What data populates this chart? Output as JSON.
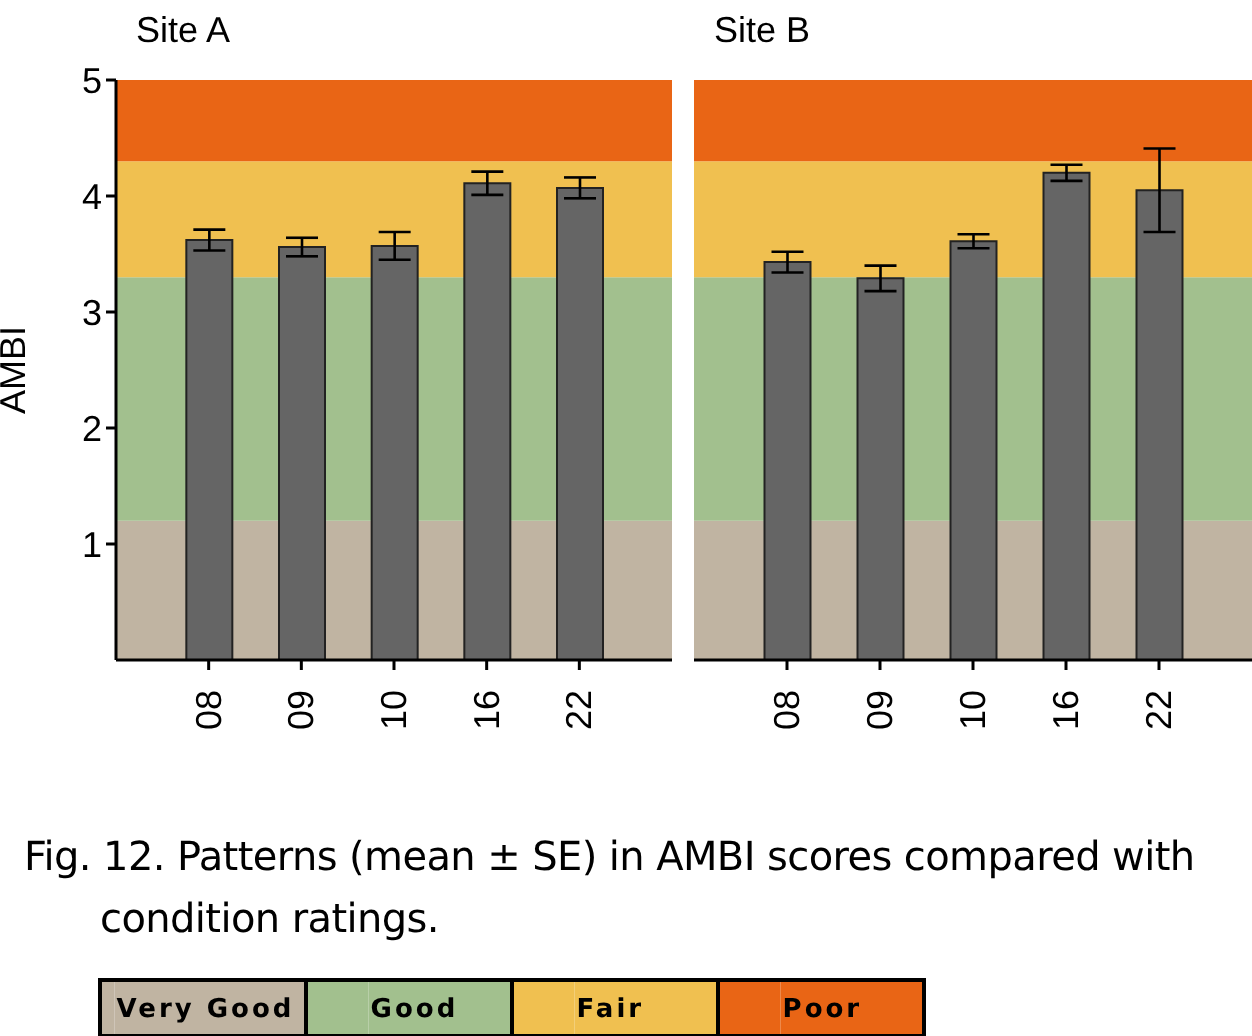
{
  "chart_data": [
    {
      "type": "bar",
      "title": "Site A",
      "ylabel": "AMBI",
      "categories": [
        "08",
        "09",
        "10",
        "16",
        "22"
      ],
      "series": [
        {
          "color": "#656565",
          "values": [
            3.62,
            3.56,
            3.57,
            4.11,
            4.07
          ],
          "errors": [
            0.09,
            0.08,
            0.12,
            0.1,
            0.09
          ]
        }
      ],
      "ylim": [
        0,
        5
      ],
      "yticks": [
        1,
        2,
        3,
        4,
        5
      ],
      "grid": false,
      "legend": "bottom",
      "bands": [
        {
          "axis": "y",
          "from": 0,
          "to": 1.2,
          "label": "Very Good",
          "color": "#c0b4a2"
        },
        {
          "axis": "y",
          "from": 1.2,
          "to": 3.3,
          "label": "Good",
          "color": "#a2c08e"
        },
        {
          "axis": "y",
          "from": 3.3,
          "to": 4.3,
          "label": "Fair",
          "color": "#f0c050"
        },
        {
          "axis": "y",
          "from": 4.3,
          "to": 5,
          "label": "Poor",
          "color": "#e96515"
        }
      ],
      "annotations": [
        "Fig. 12. Patterns (mean ± SE) in AMBI scores compared with condition ratings."
      ]
    },
    {
      "type": "bar",
      "title": "Site B",
      "categories": [
        "08",
        "09",
        "10",
        "16",
        "22"
      ],
      "series": [
        {
          "color": "#656565",
          "values": [
            3.43,
            3.29,
            3.61,
            4.2,
            4.05
          ],
          "errors": [
            0.09,
            0.11,
            0.06,
            0.07,
            0.36
          ]
        }
      ],
      "ylim": [
        0,
        5
      ],
      "yticks": [
        1,
        2,
        3,
        4,
        5
      ],
      "grid": false,
      "tick_labels": "x",
      "bands": [
        {
          "axis": "y",
          "from": 0,
          "to": 1.2,
          "color": "#c0b4a2"
        },
        {
          "axis": "y",
          "from": 1.2,
          "to": 3.3,
          "color": "#a2c08e"
        },
        {
          "axis": "y",
          "from": 3.3,
          "to": 4.3,
          "color": "#f0c050"
        },
        {
          "axis": "y",
          "from": 4.3,
          "to": 5,
          "color": "#e96515"
        }
      ]
    }
  ]
}
